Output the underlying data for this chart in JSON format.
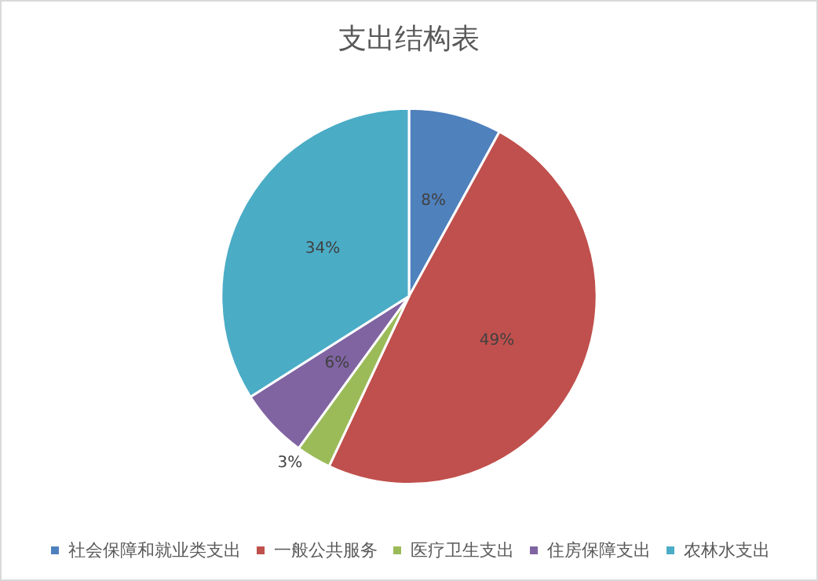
{
  "chart_data": {
    "type": "pie",
    "title": "支出结构表",
    "categories": [
      "社会保障和就业类支出",
      "一般公共服务",
      "医疗卫生支出",
      "住房保障支出",
      "农林水支出"
    ],
    "values": [
      8,
      49,
      3,
      6,
      34
    ],
    "colors": [
      "#4f81bd",
      "#c0504d",
      "#9bbb59",
      "#8064a2",
      "#4bacc6"
    ],
    "value_labels": [
      "8%",
      "49%",
      "3%",
      "6%",
      "34%"
    ],
    "legend": "bottom"
  }
}
